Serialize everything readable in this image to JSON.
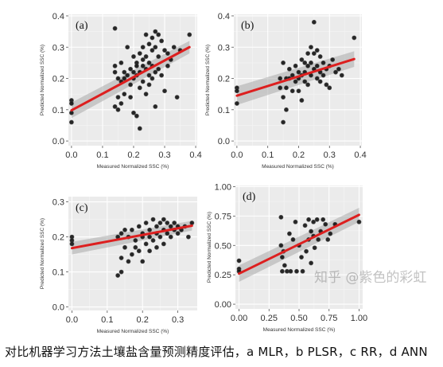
{
  "chart_data": [
    {
      "type": "scatter",
      "panel_label": "(a)",
      "xlabel": "Measured Normalized SSC (%)",
      "ylabel": "Predicted Normalized SSC (%)",
      "xlim": [
        -0.01,
        0.405
      ],
      "ylim": [
        -0.015,
        0.405
      ],
      "xticks": [
        0.0,
        0.1,
        0.2,
        0.3,
        0.4
      ],
      "yticks": [
        0.0,
        0.1,
        0.2,
        0.3,
        0.4
      ],
      "xtick_labels": [
        "0.0",
        "0.1",
        "0.2",
        "0.3",
        "0.4"
      ],
      "ytick_labels": [
        "0.0",
        "0.1",
        "0.2",
        "0.3",
        "0.4"
      ],
      "grid": true,
      "fit": {
        "x": [
          0.0,
          0.38
        ],
        "y": [
          0.098,
          0.3
        ],
        "band": [
          0.025,
          0.02
        ]
      },
      "points": {
        "x": [
          0.0,
          0.0,
          0.0,
          0.0,
          0.14,
          0.14,
          0.14,
          0.14,
          0.15,
          0.15,
          0.15,
          0.16,
          0.16,
          0.16,
          0.17,
          0.17,
          0.17,
          0.18,
          0.18,
          0.19,
          0.19,
          0.19,
          0.2,
          0.2,
          0.2,
          0.2,
          0.21,
          0.21,
          0.21,
          0.21,
          0.22,
          0.22,
          0.22,
          0.22,
          0.23,
          0.23,
          0.23,
          0.23,
          0.24,
          0.24,
          0.24,
          0.24,
          0.25,
          0.25,
          0.25,
          0.25,
          0.26,
          0.26,
          0.26,
          0.26,
          0.27,
          0.27,
          0.27,
          0.27,
          0.28,
          0.28,
          0.28,
          0.29,
          0.29,
          0.3,
          0.3,
          0.31,
          0.31,
          0.32,
          0.33,
          0.34,
          0.35,
          0.38
        ],
        "y": [
          0.13,
          0.12,
          0.09,
          0.06,
          0.36,
          0.24,
          0.22,
          0.11,
          0.2,
          0.14,
          0.1,
          0.25,
          0.19,
          0.12,
          0.22,
          0.2,
          0.15,
          0.3,
          0.21,
          0.23,
          0.18,
          0.14,
          0.27,
          0.22,
          0.2,
          0.09,
          0.25,
          0.24,
          0.21,
          0.08,
          0.28,
          0.22,
          0.17,
          0.04,
          0.3,
          0.26,
          0.24,
          0.19,
          0.34,
          0.27,
          0.23,
          0.15,
          0.31,
          0.25,
          0.21,
          0.18,
          0.33,
          0.29,
          0.24,
          0.2,
          0.35,
          0.3,
          0.22,
          0.11,
          0.34,
          0.27,
          0.23,
          0.32,
          0.21,
          0.29,
          0.16,
          0.28,
          0.24,
          0.26,
          0.3,
          0.14,
          0.29,
          0.34
        ]
      }
    },
    {
      "type": "scatter",
      "panel_label": "(b)",
      "xlabel": "Measured Normalized SSC (%)",
      "ylabel": "Predicted Normalized SSC (%)",
      "xlim": [
        -0.01,
        0.405
      ],
      "ylim": [
        -0.015,
        0.405
      ],
      "xticks": [
        0.0,
        0.1,
        0.2,
        0.3,
        0.4
      ],
      "yticks": [
        0.0,
        0.1,
        0.2,
        0.3,
        0.4
      ],
      "xtick_labels": [
        "0.0",
        "0.1",
        "0.2",
        "0.3",
        "0.4"
      ],
      "ytick_labels": [
        "0.0",
        "0.1",
        "0.2",
        "0.3",
        "0.4"
      ],
      "grid": true,
      "fit": {
        "x": [
          0.0,
          0.38
        ],
        "y": [
          0.145,
          0.262
        ],
        "band": [
          0.03,
          0.025
        ]
      },
      "points": {
        "x": [
          0.0,
          0.0,
          0.0,
          0.14,
          0.14,
          0.15,
          0.15,
          0.15,
          0.16,
          0.16,
          0.16,
          0.17,
          0.17,
          0.18,
          0.18,
          0.19,
          0.19,
          0.2,
          0.2,
          0.2,
          0.21,
          0.21,
          0.21,
          0.22,
          0.22,
          0.22,
          0.23,
          0.23,
          0.23,
          0.24,
          0.24,
          0.24,
          0.25,
          0.25,
          0.25,
          0.26,
          0.26,
          0.26,
          0.27,
          0.27,
          0.27,
          0.28,
          0.28,
          0.29,
          0.29,
          0.3,
          0.3,
          0.31,
          0.32,
          0.33,
          0.34,
          0.38
        ],
        "y": [
          0.17,
          0.16,
          0.12,
          0.2,
          0.17,
          0.25,
          0.14,
          0.06,
          0.2,
          0.17,
          0.1,
          0.23,
          0.2,
          0.21,
          0.16,
          0.24,
          0.19,
          0.22,
          0.2,
          0.16,
          0.26,
          0.21,
          0.13,
          0.25,
          0.22,
          0.19,
          0.28,
          0.24,
          0.18,
          0.3,
          0.25,
          0.21,
          0.28,
          0.23,
          0.38,
          0.29,
          0.24,
          0.2,
          0.27,
          0.22,
          0.19,
          0.25,
          0.21,
          0.23,
          0.18,
          0.24,
          0.17,
          0.26,
          0.22,
          0.23,
          0.21,
          0.33
        ]
      }
    },
    {
      "type": "scatter",
      "panel_label": "(c)",
      "xlabel": "Measured Normalized SSC (%)",
      "ylabel": "Predicted Normalized SSC (%)",
      "xlim": [
        -0.01,
        0.355
      ],
      "ylim": [
        -0.01,
        0.315
      ],
      "xticks": [
        0.0,
        0.1,
        0.2,
        0.3
      ],
      "yticks": [
        0.0,
        0.1,
        0.2,
        0.3
      ],
      "xtick_labels": [
        "0.0",
        "0.1",
        "0.2",
        "0.3"
      ],
      "ytick_labels": [
        "0.0",
        "0.1",
        "0.2",
        "0.3"
      ],
      "grid": true,
      "fit": {
        "x": [
          0.0,
          0.34
        ],
        "y": [
          0.168,
          0.232
        ],
        "band": [
          0.018,
          0.014
        ]
      },
      "points": {
        "x": [
          0.0,
          0.0,
          0.0,
          0.13,
          0.13,
          0.14,
          0.14,
          0.14,
          0.15,
          0.15,
          0.16,
          0.16,
          0.17,
          0.17,
          0.18,
          0.18,
          0.19,
          0.19,
          0.2,
          0.2,
          0.2,
          0.21,
          0.21,
          0.22,
          0.22,
          0.22,
          0.23,
          0.23,
          0.24,
          0.24,
          0.24,
          0.25,
          0.25,
          0.26,
          0.26,
          0.26,
          0.27,
          0.27,
          0.28,
          0.28,
          0.29,
          0.29,
          0.3,
          0.3,
          0.31,
          0.32,
          0.33,
          0.34
        ],
        "y": [
          0.2,
          0.19,
          0.18,
          0.2,
          0.09,
          0.21,
          0.14,
          0.1,
          0.22,
          0.17,
          0.2,
          0.13,
          0.22,
          0.15,
          0.19,
          0.17,
          0.23,
          0.16,
          0.21,
          0.2,
          0.13,
          0.24,
          0.18,
          0.22,
          0.2,
          0.16,
          0.25,
          0.19,
          0.23,
          0.21,
          0.17,
          0.24,
          0.2,
          0.25,
          0.22,
          0.18,
          0.24,
          0.21,
          0.23,
          0.2,
          0.22,
          0.24,
          0.23,
          0.21,
          0.22,
          0.23,
          0.2,
          0.24
        ]
      }
    },
    {
      "type": "scatter",
      "panel_label": "(d)",
      "xlabel": "Measured Normalized SSC (%)",
      "ylabel": "Predicted Normalized SSC (%)",
      "xlim": [
        -0.03,
        1.03
      ],
      "ylim": [
        -0.04,
        1.01
      ],
      "xticks": [
        0.0,
        0.25,
        0.5,
        0.75,
        1.0
      ],
      "yticks": [
        0.0,
        0.25,
        0.5,
        0.75,
        1.0
      ],
      "xtick_labels": [
        "0.00",
        "0.25",
        "0.50",
        "0.75",
        "1.00"
      ],
      "ytick_labels": [
        "0.00",
        "0.25",
        "0.50",
        "0.75",
        "1.00"
      ],
      "grid": true,
      "fit": {
        "x": [
          0.0,
          1.0
        ],
        "y": [
          0.26,
          0.76
        ],
        "band": [
          0.07,
          0.06
        ]
      },
      "points": {
        "x": [
          0.0,
          0.0,
          0.0,
          0.35,
          0.35,
          0.36,
          0.36,
          0.37,
          0.38,
          0.4,
          0.42,
          0.43,
          0.45,
          0.47,
          0.48,
          0.5,
          0.52,
          0.53,
          0.55,
          0.56,
          0.58,
          0.58,
          0.6,
          0.6,
          0.62,
          0.62,
          0.63,
          0.65,
          0.66,
          0.68,
          0.7,
          0.72,
          0.74,
          0.76,
          0.8,
          1.0
        ],
        "y": [
          0.37,
          0.3,
          0.28,
          0.74,
          0.5,
          0.4,
          0.28,
          0.45,
          0.33,
          0.28,
          0.6,
          0.28,
          0.55,
          0.7,
          0.28,
          0.5,
          0.4,
          0.28,
          0.67,
          0.45,
          0.72,
          0.55,
          0.62,
          0.35,
          0.7,
          0.58,
          0.48,
          0.72,
          0.55,
          0.62,
          0.72,
          0.68,
          0.55,
          0.6,
          0.68,
          0.7
        ]
      }
    }
  ],
  "caption": "对比机器学习方法土壤盐含量预测精度评估，a MLR，b PLSR，c RR，d ANN",
  "watermark": "知乎 @紫色的彩虹"
}
